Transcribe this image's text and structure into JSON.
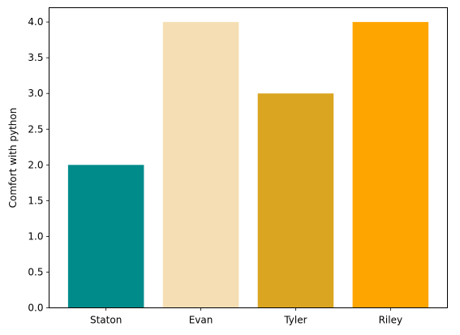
{
  "chart_data": {
    "type": "bar",
    "title": "",
    "xlabel": "",
    "ylabel": "Comfort with python",
    "categories": [
      "Staton",
      "Evan",
      "Tyler",
      "Riley"
    ],
    "values": [
      2,
      4,
      3,
      4
    ],
    "colors": [
      "#008b8b",
      "#f5deb3",
      "#daa520",
      "#ffa500"
    ],
    "ylim": [
      0,
      4.2
    ],
    "yticks": [
      "0.0",
      "0.5",
      "1.0",
      "1.5",
      "2.0",
      "2.5",
      "3.0",
      "3.5",
      "4.0"
    ],
    "grid": false,
    "legend": "none"
  }
}
